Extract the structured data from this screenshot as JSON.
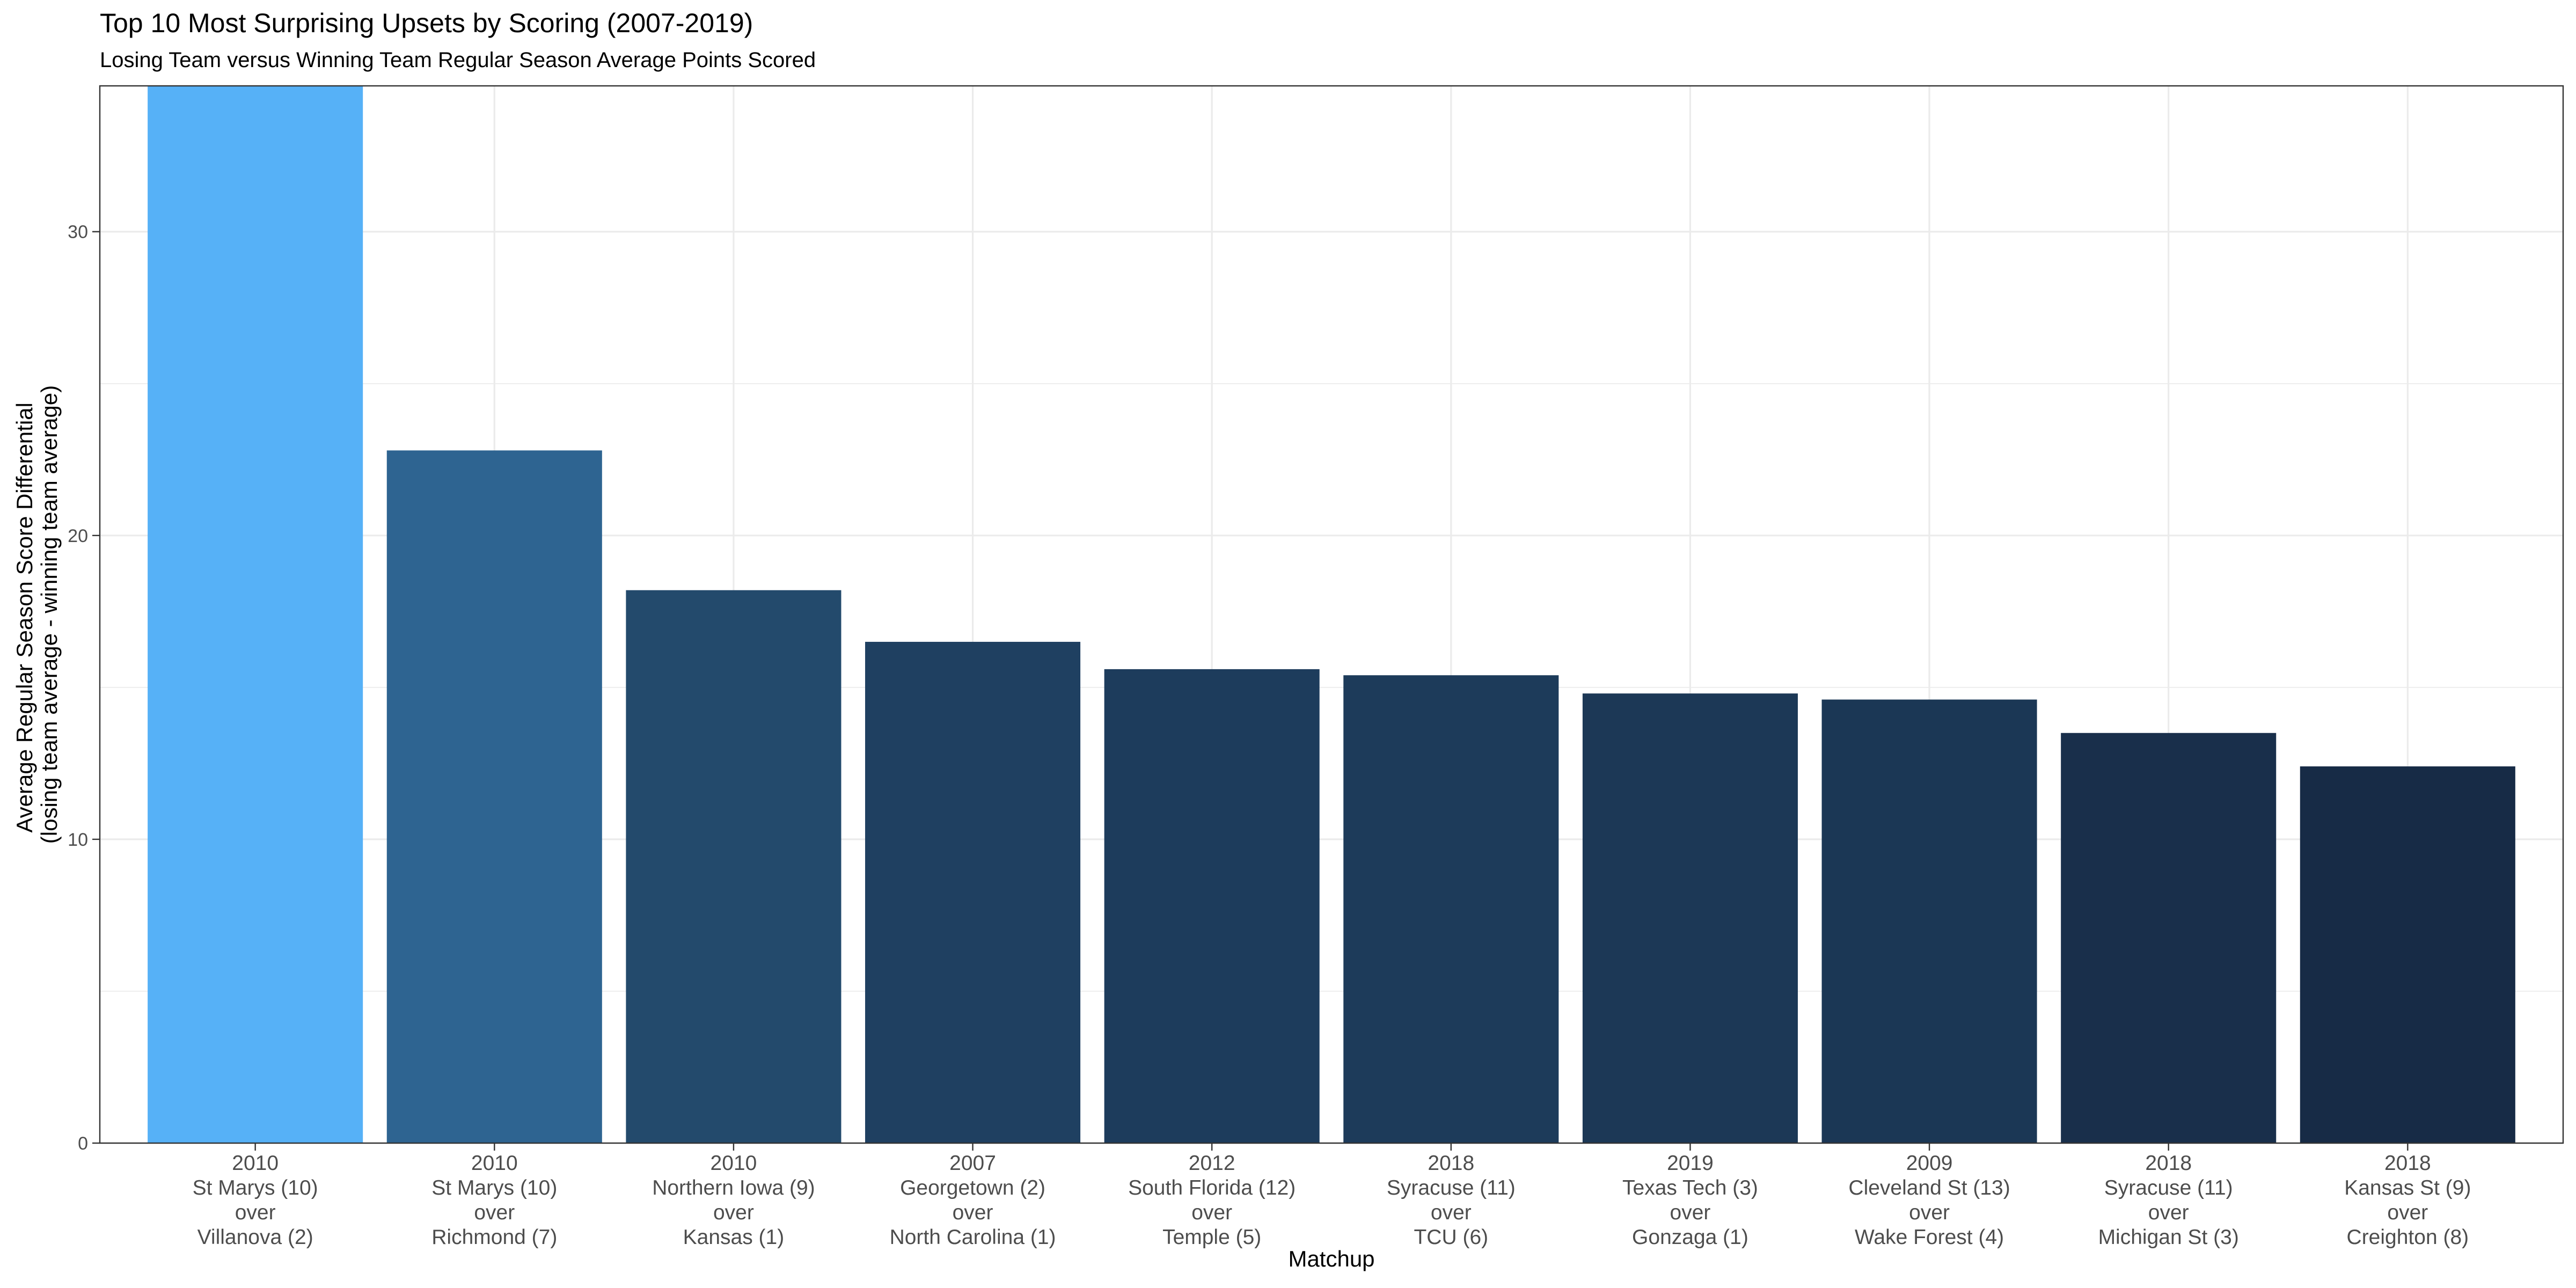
{
  "chart_data": {
    "type": "bar",
    "title": "Top 10 Most Surprising Upsets by Scoring (2007-2019)",
    "subtitle": "Losing Team versus Winning Team Regular Season Average Points Scored",
    "xlabel": "Matchup",
    "ylabel": [
      "Average Regular Season Score Differential",
      "(losing team average - winning team average)"
    ],
    "ylim": [
      0,
      34.8
    ],
    "yticks": [
      0,
      10,
      20,
      30
    ],
    "grid": true,
    "legend": "none",
    "categories": [
      [
        "2010",
        "St Marys (10)",
        "over",
        "Villanova (2)"
      ],
      [
        "2010",
        "St Marys (10)",
        "over",
        "Richmond (7)"
      ],
      [
        "2010",
        "Northern Iowa (9)",
        "over",
        "Kansas (1)"
      ],
      [
        "2007",
        "Georgetown (2)",
        "over",
        "North Carolina (1)"
      ],
      [
        "2012",
        "South Florida (12)",
        "over",
        "Temple (5)"
      ],
      [
        "2018",
        "Syracuse (11)",
        "over",
        "TCU (6)"
      ],
      [
        "2019",
        "Texas Tech (3)",
        "over",
        "Gonzaga (1)"
      ],
      [
        "2009",
        "Cleveland St (13)",
        "over",
        "Wake Forest (4)"
      ],
      [
        "2018",
        "Syracuse (11)",
        "over",
        "Michigan St (3)"
      ],
      [
        "2018",
        "Kansas St (9)",
        "over",
        "Creighton (8)"
      ]
    ],
    "values": [
      35.5,
      22.8,
      18.2,
      16.5,
      15.6,
      15.4,
      14.8,
      14.6,
      13.5,
      12.4
    ],
    "colors": [
      "#56B1F7",
      "#2E6491",
      "#234A6C",
      "#1F4061",
      "#1D3C5C",
      "#1D3B5A",
      "#1C3856",
      "#1B3755",
      "#192F4B",
      "#172B46"
    ]
  }
}
